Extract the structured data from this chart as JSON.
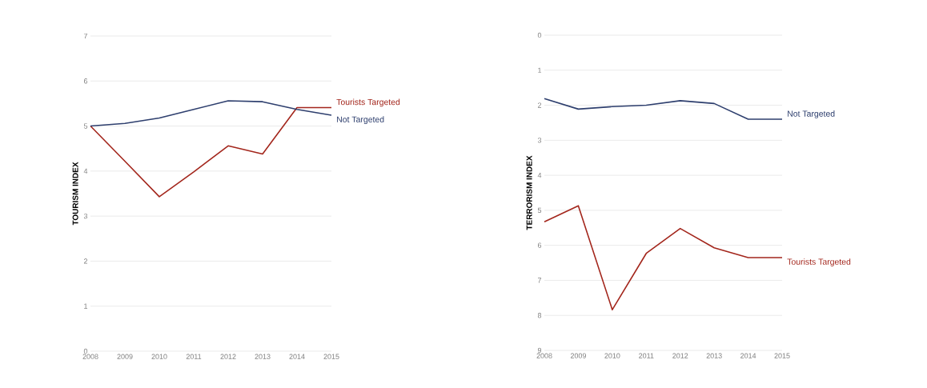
{
  "chart_data": [
    {
      "type": "line",
      "ylabel": "TOURISM INDEX",
      "x": [
        2008,
        2009,
        2010,
        2011,
        2012,
        2013,
        2014,
        2015
      ],
      "xlim": [
        2008,
        2015
      ],
      "xticks": [
        2008,
        2009,
        2010,
        2011,
        2012,
        2013,
        2014,
        2015
      ],
      "ylim": [
        0,
        7
      ],
      "yticks": [
        0,
        1,
        2,
        3,
        4,
        5,
        6,
        7
      ],
      "grid": "y",
      "legend": false,
      "series": [
        {
          "name": "Tourists Targeted",
          "color": "#a3261c",
          "values": [
            5.0,
            4.22,
            3.43,
            3.98,
            4.56,
            4.38,
            5.41,
            5.41
          ]
        },
        {
          "name": "Not Targeted",
          "color": "#2e3f6e",
          "values": [
            5.0,
            5.06,
            5.18,
            5.37,
            5.56,
            5.54,
            5.37,
            5.24
          ]
        }
      ]
    },
    {
      "type": "line",
      "ylabel": "TERRORISM INDEX",
      "x": [
        2008,
        2009,
        2010,
        2011,
        2012,
        2013,
        2014,
        2015
      ],
      "xlim": [
        2008,
        2015
      ],
      "xticks": [
        2008,
        2009,
        2010,
        2011,
        2012,
        2013,
        2014,
        2015
      ],
      "ylim": [
        9,
        0
      ],
      "yticks": [
        0,
        1,
        2,
        3,
        4,
        5,
        6,
        7,
        8,
        9
      ],
      "grid": "y",
      "legend": false,
      "series": [
        {
          "name": "Not Targeted",
          "color": "#2e3f6e",
          "values": [
            1.81,
            2.11,
            2.04,
            2.0,
            1.87,
            1.95,
            2.4,
            2.4
          ]
        },
        {
          "name": "Tourists Targeted",
          "color": "#a3261c",
          "values": [
            5.33,
            4.87,
            7.84,
            6.23,
            5.52,
            6.07,
            6.35,
            6.35
          ]
        }
      ]
    }
  ]
}
